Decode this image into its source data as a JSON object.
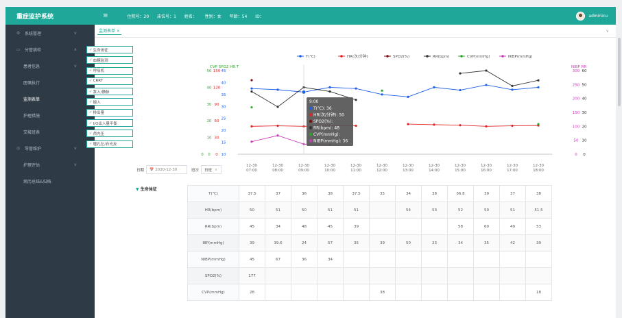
{
  "app": {
    "title": "重症监护系统"
  },
  "topbar": {
    "hamburger": "≡",
    "bed_no": "住院号：20",
    "bed": "床位号：1",
    "name": "姓名：",
    "gender": "性别：女",
    "age": "年龄：54",
    "id": "ID：",
    "user": "adminicu"
  },
  "sidebar": {
    "items": [
      {
        "label": "系统管理",
        "icon": "gear-icon",
        "caret": "∨"
      },
      {
        "label": "分管病检",
        "icon": "folder-icon",
        "caret": "∧"
      },
      {
        "label": "患者信息",
        "caret": "∨"
      },
      {
        "label": "医嘱执行",
        "caret": ""
      },
      {
        "label": "监测表单",
        "caret": ""
      },
      {
        "label": "护理措施",
        "caret": ""
      },
      {
        "label": "交接班表",
        "caret": ""
      },
      {
        "label": "导管维护",
        "icon": "tube-icon",
        "caret": "∨"
      },
      {
        "label": "护理评估",
        "caret": "∨"
      },
      {
        "label": "病历总结&归档",
        "caret": ""
      }
    ]
  },
  "tabs": [
    {
      "label": "监测表单 ×"
    }
  ],
  "tab_down": "∨",
  "checks": [
    "生命体征",
    "血糖监测",
    "呼吸机",
    "CRRT",
    "泵入/静脉",
    "摄入",
    "排出量",
    "I/O出入量平衡",
    "颅内压",
    "瞳孔左/右光反"
  ],
  "check_mark": "✓",
  "datebar": {
    "date_label": "日期",
    "date_icon": "📅",
    "date_value": "2020-12-30",
    "shift_label": "班次",
    "shift_value": "日班",
    "shift_caret": "∨"
  },
  "times": [
    {
      "t": "12-30",
      "h": "07:00"
    },
    {
      "t": "12-30",
      "h": "08:00"
    },
    {
      "t": "12-30",
      "h": "09:00"
    },
    {
      "t": "12-30",
      "h": "10:00"
    },
    {
      "t": "12-30",
      "h": "11:00"
    },
    {
      "t": "12-30",
      "h": "12:00"
    },
    {
      "t": "12-30",
      "h": "13:00"
    },
    {
      "t": "12-30",
      "h": "14:00"
    },
    {
      "t": "12-30",
      "h": "15:00"
    },
    {
      "t": "12-30",
      "h": "16:00"
    },
    {
      "t": "12-30",
      "h": "17:00"
    },
    {
      "t": "12-30",
      "h": "18:00"
    }
  ],
  "section": {
    "arrow": "▼",
    "title": "生命体征"
  },
  "table": {
    "rows": [
      {
        "label": "T(℃)",
        "values": [
          "37.5",
          "37",
          "36",
          "38",
          "37.5",
          "35",
          "34",
          "38",
          "36.8",
          "39",
          "37",
          "38"
        ]
      },
      {
        "label": "HR(bpm)",
        "values": [
          "50",
          "51",
          "50",
          "51",
          "51",
          "",
          "54",
          "53",
          "52",
          "50",
          "51",
          "51.5"
        ]
      },
      {
        "label": "RR(bpm)",
        "values": [
          "45",
          "34",
          "48",
          "45",
          "39",
          "",
          "",
          "",
          "58",
          "60",
          "49",
          "53"
        ]
      },
      {
        "label": "IBP(mmHg)",
        "values": [
          "39",
          "39.6",
          "24",
          "57",
          "35",
          "39",
          "50",
          "23",
          "34",
          "35",
          "42",
          "39"
        ]
      },
      {
        "label": "NIBP(mmHg)",
        "values": [
          "45",
          "67",
          "36",
          "34",
          "",
          "",
          "",
          "",
          "",
          "",
          "",
          ""
        ]
      },
      {
        "label": "SPO2(%)",
        "values": [
          "177",
          "",
          "",
          "",
          "",
          "",
          "",
          "",
          "",
          "",
          "",
          ""
        ]
      },
      {
        "label": "CVP(mmHg)",
        "values": [
          "28",
          "",
          "",
          "",
          "",
          "38",
          "",
          "",
          "",
          "",
          "",
          "18"
        ]
      }
    ]
  },
  "chart_data": {
    "type": "line",
    "legend_position": "top",
    "legend": [
      "T(℃)",
      "HR(次/分钟)",
      "SPO2(%)",
      "RR(bpm)",
      "CVP(mmHg)",
      "NIBP(mmHg)"
    ],
    "left_axis_titles": [
      "CVP",
      "SPO2",
      "HR",
      "T"
    ],
    "right_axis_titles": [
      "NIBP",
      "RR"
    ],
    "axis_ticks": {
      "T": [
        "45",
        "40",
        "35",
        "30",
        "25",
        "20",
        "15",
        "10"
      ],
      "HR": [
        "150",
        "120",
        "90",
        "60",
        "30",
        "0"
      ],
      "SPO2": [
        "50",
        "40",
        "30",
        "20",
        "10",
        "0"
      ],
      "CVP": [
        "0"
      ],
      "NIBP": [
        "300",
        "250",
        "200",
        "150",
        "100",
        "50",
        "0"
      ],
      "RR": [
        "60",
        "50",
        "40",
        "30",
        "20",
        "10",
        "0"
      ]
    },
    "x": [
      "07:00",
      "08:00",
      "09:00",
      "10:00",
      "11:00",
      "12:00",
      "13:00",
      "14:00",
      "15:00",
      "16:00",
      "17:00",
      "18:00"
    ],
    "series": [
      {
        "name": "T(℃)",
        "color": "#1e5fe8",
        "values": [
          37.5,
          37,
          36,
          38,
          37.5,
          35,
          34,
          38,
          36.8,
          39,
          37,
          38
        ]
      },
      {
        "name": "HR(次/分钟)",
        "color": "#e02424",
        "values": [
          50,
          51,
          50,
          51,
          51,
          null,
          54,
          53,
          52,
          50,
          51,
          51.5
        ]
      },
      {
        "name": "RR(bpm)",
        "color": "#333333",
        "values": [
          45,
          34,
          48,
          45,
          39,
          null,
          null,
          null,
          58,
          60,
          49,
          53
        ]
      },
      {
        "name": "NIBP(mmHg)",
        "color": "#c83db8",
        "values": [
          45,
          67,
          36,
          34,
          null,
          null,
          null,
          null,
          null,
          null,
          null,
          null
        ]
      },
      {
        "name": "CVP(mmHg)",
        "color": "#2aa52a",
        "values": [
          28,
          null,
          null,
          null,
          null,
          38,
          null,
          null,
          null,
          null,
          null,
          18
        ]
      },
      {
        "name": "SPO2(%)",
        "color": "#7a0e0e",
        "values": [
          177,
          null,
          null,
          null,
          null,
          null,
          null,
          null,
          null,
          null,
          null,
          null
        ]
      }
    ],
    "tooltip": {
      "time": "9:00",
      "lines": [
        "T(℃): 36",
        "HR(次/分钟): 50",
        "SPO2(%):",
        "RR(bpm): 48",
        "CVP(mmHg):",
        "NIBP(mmHg): 36"
      ],
      "colors": [
        "#1e5fe8",
        "#e02424",
        "#7a0e0e",
        "#333333",
        "#2aa52a",
        "#c83db8"
      ]
    }
  }
}
